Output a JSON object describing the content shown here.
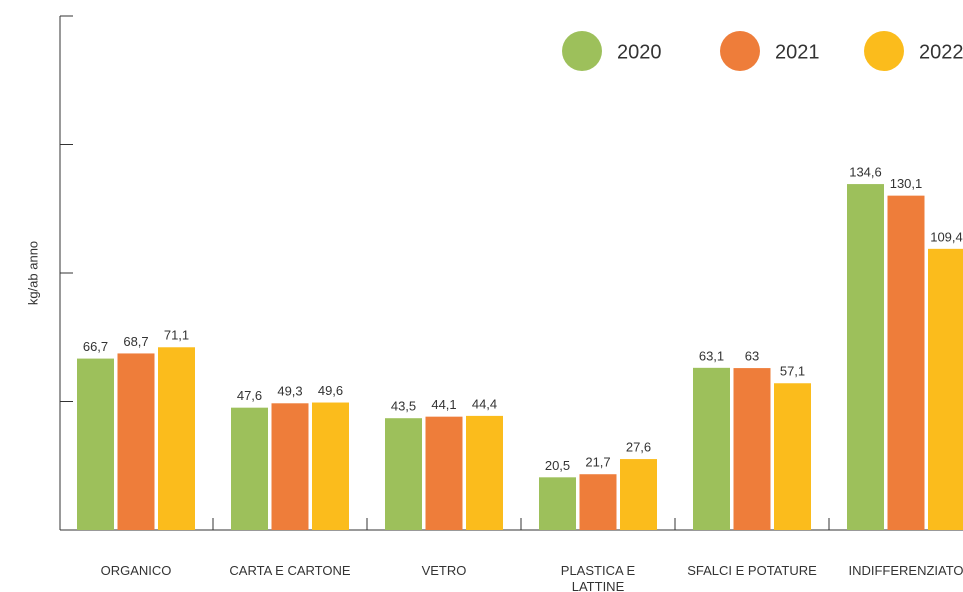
{
  "chart_data": {
    "type": "bar",
    "y_label": "kg/ab anno",
    "categories": [
      "ORGANICO",
      "CARTA E CARTONE",
      "VETRO",
      "PLASTICA E LATTINE",
      "SFALCI E POTATURE",
      "INDIFFERENZIATO"
    ],
    "series": [
      {
        "name": "2020",
        "color": "#9dc05b",
        "values": [
          66.7,
          47.6,
          43.5,
          20.5,
          63.1,
          134.6
        ],
        "value_labels": [
          "66,7",
          "47,6",
          "43,5",
          "20,5",
          "63,1",
          "134,6"
        ]
      },
      {
        "name": "2021",
        "color": "#ee7d3a",
        "values": [
          68.7,
          49.3,
          44.1,
          21.7,
          63,
          130.1
        ],
        "value_labels": [
          "68,7",
          "49,3",
          "44,1",
          "21,7",
          "63",
          "130,1"
        ]
      },
      {
        "name": "2022",
        "color": "#fbbc1c",
        "values": [
          71.1,
          49.6,
          44.4,
          27.6,
          57.1,
          109.4
        ],
        "value_labels": [
          "71,1",
          "49,6",
          "44,4",
          "27,6",
          "57,1",
          "109,4"
        ]
      }
    ],
    "ylim": [
      0,
      200
    ],
    "yticks": [
      0,
      50,
      100,
      150,
      200
    ]
  }
}
